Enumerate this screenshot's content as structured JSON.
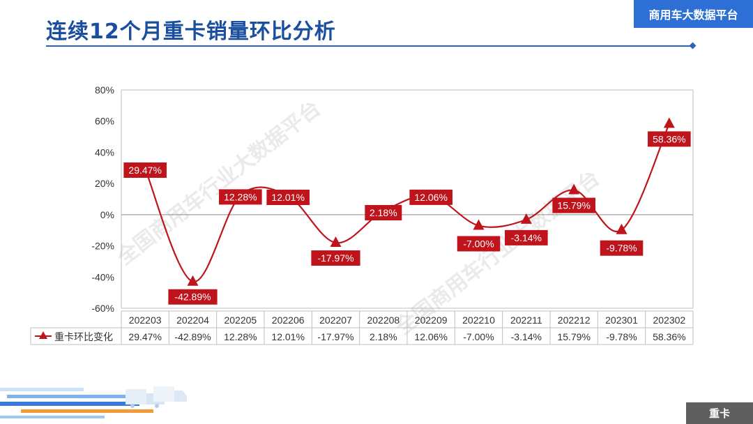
{
  "header": {
    "title": "连续12个月重卡销量环比分析",
    "brand": "商用车大数据平台"
  },
  "footer": {
    "tag": "重卡"
  },
  "watermark": {
    "text": "全国商用车行业大数据平台"
  },
  "colors": {
    "series": "#c0141c",
    "title": "#1a4fa0",
    "brand": "#2e6fd6"
  },
  "chart_data": {
    "type": "line",
    "title": "",
    "xlabel": "",
    "ylabel": "",
    "categories": [
      "202203",
      "202204",
      "202205",
      "202206",
      "202207",
      "202208",
      "202209",
      "202210",
      "202211",
      "202212",
      "202301",
      "202302"
    ],
    "series": [
      {
        "name": "重卡环比变化",
        "values": [
          29.47,
          -42.89,
          12.28,
          12.01,
          -17.97,
          2.18,
          12.06,
          -7.0,
          -3.14,
          15.79,
          -9.78,
          58.36
        ],
        "labels": [
          "29.47%",
          "-42.89%",
          "12.28%",
          "12.01%",
          "-17.97%",
          "2.18%",
          "12.06%",
          "-7.00%",
          "-3.14%",
          "15.79%",
          "-9.78%",
          "58.36%"
        ],
        "marker": "triangle",
        "smooth": true
      }
    ],
    "ylim": [
      -60,
      80
    ],
    "yticks": [
      80,
      60,
      40,
      20,
      0,
      -20,
      -40,
      -60
    ],
    "ytick_labels": [
      "80%",
      "60%",
      "40%",
      "20%",
      "0%",
      "-20%",
      "-40%",
      "-60%"
    ],
    "grid": false,
    "legend": "data-table-left"
  }
}
